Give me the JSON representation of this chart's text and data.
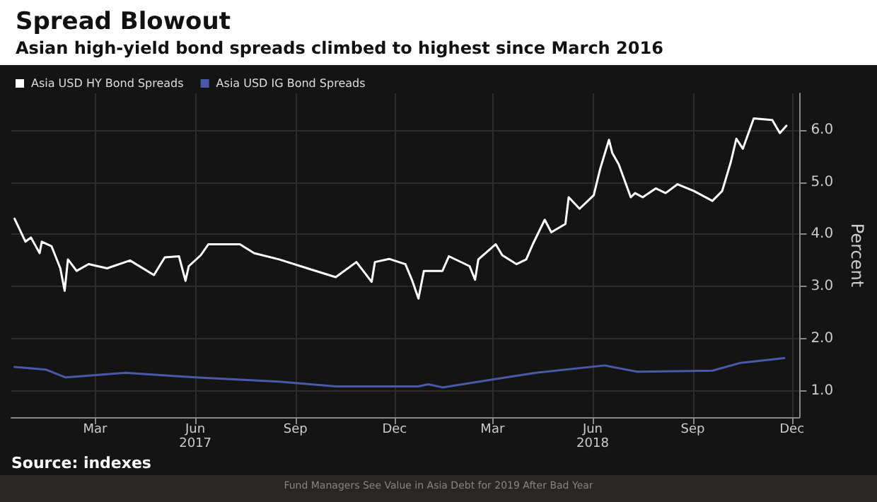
{
  "chart_data": {
    "type": "line",
    "title": "Spread Blowout",
    "subtitle": "Asian high-yield bond spreads climbed to highest since March 2016",
    "ylabel": "Percent",
    "x": [
      "2016-12-17",
      "2016-12-27",
      "2017-01-01",
      "2017-01-09",
      "2017-01-11",
      "2017-01-20",
      "2017-01-28",
      "2017-02-01",
      "2017-02-04",
      "2017-02-12",
      "2017-02-23",
      "2017-03-12",
      "2017-04-02",
      "2017-04-24",
      "2017-05-04",
      "2017-05-17",
      "2017-05-23",
      "2017-05-26",
      "2017-06-06",
      "2017-06-13",
      "2017-07-01",
      "2017-07-12",
      "2017-07-25",
      "2017-08-17",
      "2017-09-12",
      "2017-10-08",
      "2017-10-27",
      "2017-11-10",
      "2017-11-13",
      "2017-11-26",
      "2017-12-11",
      "2017-12-17",
      "2017-12-23",
      "2017-12-28",
      "2018-01-14",
      "2018-01-20",
      "2018-02-08",
      "2018-02-13",
      "2018-02-16",
      "2018-03-04",
      "2018-03-10",
      "2018-03-23",
      "2018-04-01",
      "2018-04-07",
      "2018-04-18",
      "2018-04-24",
      "2018-05-07",
      "2018-05-10",
      "2018-05-20",
      "2018-06-02",
      "2018-06-08",
      "2018-06-16",
      "2018-06-19",
      "2018-06-25",
      "2018-07-06",
      "2018-07-10",
      "2018-07-17",
      "2018-07-29",
      "2018-08-07",
      "2018-08-18",
      "2018-09-02",
      "2018-09-19",
      "2018-09-28",
      "2018-10-06",
      "2018-10-11",
      "2018-10-17",
      "2018-10-27",
      "2018-11-13",
      "2018-11-20",
      "2018-11-26"
    ],
    "series": [
      {
        "name": "Asia USD HY Bond Spreads",
        "color": "#ffffff",
        "values": [
          4.3,
          3.86,
          3.94,
          3.64,
          3.86,
          3.77,
          3.35,
          2.92,
          3.52,
          3.3,
          3.43,
          3.35,
          3.5,
          3.22,
          3.56,
          3.58,
          3.11,
          3.39,
          3.6,
          3.81,
          3.81,
          3.81,
          3.64,
          3.52,
          3.35,
          3.18,
          3.47,
          3.09,
          3.47,
          3.53,
          3.43,
          3.13,
          2.77,
          3.3,
          3.3,
          3.58,
          3.39,
          3.13,
          3.52,
          3.81,
          3.6,
          3.43,
          3.52,
          3.81,
          4.28,
          4.04,
          4.2,
          4.71,
          4.49,
          4.75,
          5.26,
          5.81,
          5.56,
          5.34,
          4.71,
          4.79,
          4.71,
          4.88,
          4.79,
          4.96,
          4.83,
          4.64,
          4.83,
          5.39,
          5.83,
          5.64,
          6.22,
          6.19,
          5.94,
          6.08
        ]
      },
      {
        "name": "Asia USD IG Bond Spreads",
        "color": "#4a5aa8",
        "x": [
          "2016-12-17",
          "2017-01-15",
          "2017-02-02",
          "2017-03-29",
          "2017-06-01",
          "2017-08-17",
          "2017-10-08",
          "2017-12-23",
          "2018-01-01",
          "2018-01-14",
          "2018-03-01",
          "2018-04-10",
          "2018-06-12",
          "2018-07-12",
          "2018-09-19",
          "2018-10-15",
          "2018-11-24"
        ],
        "values": [
          1.46,
          1.41,
          1.26,
          1.35,
          1.26,
          1.18,
          1.09,
          1.09,
          1.13,
          1.07,
          1.22,
          1.35,
          1.49,
          1.37,
          1.39,
          1.54,
          1.63
        ]
      }
    ],
    "xlim": [
      "2016-12-14",
      "2018-12-08"
    ],
    "xticks": [
      {
        "value": "2017-03-01",
        "label": "Mar"
      },
      {
        "value": "2017-06-01",
        "label": "Jun\n2017"
      },
      {
        "value": "2017-09-01",
        "label": "Sep"
      },
      {
        "value": "2017-12-01",
        "label": "Dec"
      },
      {
        "value": "2018-03-01",
        "label": "Mar"
      },
      {
        "value": "2018-06-01",
        "label": "Jun\n2018"
      },
      {
        "value": "2018-09-01",
        "label": "Sep"
      },
      {
        "value": "2018-12-01",
        "label": "Dec"
      }
    ],
    "ylim": [
      0.5,
      6.7
    ],
    "yticks": [
      {
        "value": 1,
        "label": "1.0"
      },
      {
        "value": 2,
        "label": "2.0"
      },
      {
        "value": 3,
        "label": "3.0"
      },
      {
        "value": 4,
        "label": "4.0"
      },
      {
        "value": 5,
        "label": "5.0"
      },
      {
        "value": 6,
        "label": "6.0"
      }
    ],
    "grid": true,
    "legend": "top left",
    "marker": "none",
    "line_style": "solid",
    "annotations": [
      "Source: indexes",
      "Fund Managers See Value in Asia Debt for 2019 After Bad Year"
    ]
  }
}
